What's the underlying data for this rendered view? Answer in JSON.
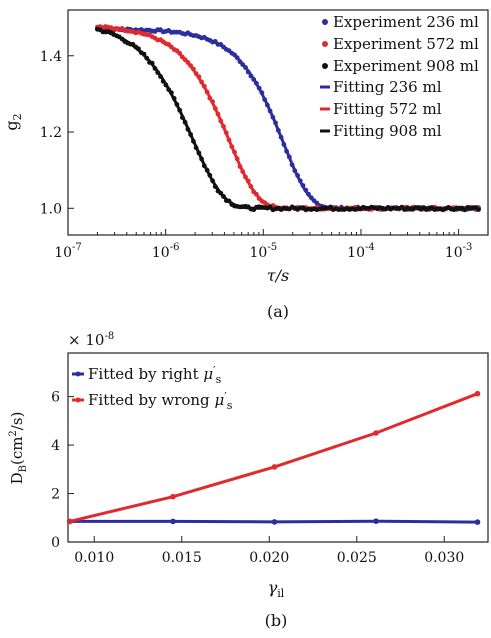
{
  "chart_data": [
    {
      "type": "scatter",
      "panel_label": "(a)",
      "xlabel": "τ/s",
      "ylabel": "g",
      "ylabel_sub": "2",
      "xscale": "log",
      "xlim": [
        1e-07,
        0.002
      ],
      "ylim": [
        0.93,
        1.52
      ],
      "x_ticks": [
        1e-07,
        1e-06,
        1e-05,
        0.0001,
        0.001
      ],
      "x_tick_labels": [
        "10",
        "10",
        "10",
        "10",
        "10"
      ],
      "x_tick_exponents": [
        "-7",
        "-6",
        "-5",
        "-4",
        "-3"
      ],
      "y_ticks": [
        1.0,
        1.2,
        1.4
      ],
      "y_tick_labels": [
        "1.0",
        "1.2",
        "1.4"
      ],
      "grid": false,
      "legend_position": "top-right",
      "legend": [
        "Experiment 236 ml",
        "Experiment 572 ml",
        "Experiment 908 ml",
        "Fitting 236 ml",
        "Fitting 572 ml",
        "Fitting 908 ml"
      ],
      "x_range": [
        2e-07,
        0.0016
      ],
      "series": [
        {
          "name": "Experiment 236 ml",
          "kind": "points",
          "color": "#2b2f9e",
          "baseline": 1.0,
          "beta": 0.47,
          "tau_c": 1.6e-05,
          "shape": 1.6,
          "noise": 0.003
        },
        {
          "name": "Experiment 572 ml",
          "kind": "points",
          "color": "#e02a2e",
          "baseline": 1.0,
          "beta": 0.48,
          "tau_c": 4.5e-06,
          "shape": 1.5,
          "noise": 0.003
        },
        {
          "name": "Experiment 908 ml",
          "kind": "points",
          "color": "#111111",
          "baseline": 1.0,
          "beta": 0.49,
          "tau_c": 1.9e-06,
          "shape": 1.4,
          "noise": 0.004
        },
        {
          "name": "Fitting 236 ml",
          "kind": "line",
          "color": "#2b2f9e",
          "baseline": 1.0,
          "beta": 0.47,
          "tau_c": 1.6e-05,
          "shape": 1.6
        },
        {
          "name": "Fitting 572 ml",
          "kind": "line",
          "color": "#e02a2e",
          "baseline": 1.0,
          "beta": 0.48,
          "tau_c": 4.5e-06,
          "shape": 1.5
        },
        {
          "name": "Fitting 908 ml",
          "kind": "line",
          "color": "#111111",
          "baseline": 1.0,
          "beta": 0.49,
          "tau_c": 1.9e-06,
          "shape": 1.4
        }
      ]
    },
    {
      "type": "line",
      "panel_label": "(b)",
      "xlabel": "γ",
      "xlabel_sub": "il",
      "ylabel": "D",
      "ylabel_sub": "B",
      "ylabel_tail": "(cm",
      "ylabel_sup": "2",
      "ylabel_end": "/s)",
      "y_multiplier": "× 10",
      "y_multiplier_exp": "-8",
      "xlim": [
        0.0085,
        0.0325
      ],
      "ylim": [
        0,
        7.8
      ],
      "x_ticks": [
        0.01,
        0.015,
        0.02,
        0.025,
        0.03
      ],
      "x_tick_labels": [
        "0.010",
        "0.015",
        "0.020",
        "0.025",
        "0.030"
      ],
      "y_ticks": [
        0,
        2,
        4,
        6
      ],
      "y_tick_labels": [
        "0",
        "2",
        "4",
        "6"
      ],
      "grid": false,
      "legend_position": "top-left",
      "x": [
        0.0086,
        0.0145,
        0.0203,
        0.0261,
        0.0319
      ],
      "series": [
        {
          "name": "Fitted by right μ′s",
          "legend_main": "Fitted by right ",
          "legend_mu": "μ",
          "legend_prime": "′",
          "legend_sub": "s",
          "color": "#2b2f9e",
          "values": [
            0.85,
            0.85,
            0.83,
            0.86,
            0.82
          ]
        },
        {
          "name": "Fitted by wrong μ′s",
          "legend_main": "Fitted by wrong ",
          "legend_mu": "μ",
          "legend_prime": "′",
          "legend_sub": "s",
          "color": "#e02a2e",
          "values": [
            0.85,
            1.87,
            3.1,
            4.5,
            6.12
          ]
        }
      ]
    }
  ]
}
